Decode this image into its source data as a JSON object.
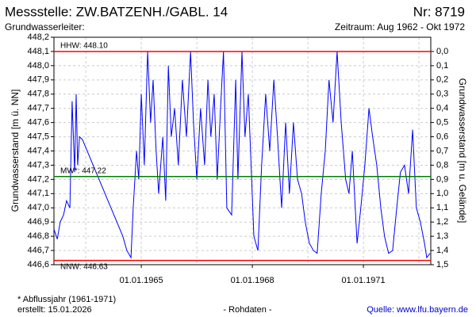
{
  "chart_data": {
    "type": "line",
    "title": "Messstelle: ZW.BATZENH./GABL. 14",
    "number": "Nr: 8719",
    "subtitle_left": "Grundwasserleiter:",
    "subtitle_right": "Zeitraum: Aug 1962 - Okt 1972",
    "ylabel": "Grundwasserstand [m ü. NN]",
    "y2label": "Grundwasserstand [m u. Gelände]",
    "footnote": "* Abflussjahr (1961-1971)",
    "created": "erstellt:  15.01.2026",
    "note": "- Rohdaten -",
    "source": "Quelle: www.lfu.bayern.de",
    "color": "#0000ff",
    "grid": true,
    "x": [
      1962.64,
      1962.73,
      1962.81,
      1962.9,
      1962.98,
      1963.07,
      1963.13,
      1963.2,
      1963.24,
      1963.28,
      1963.33,
      1963.41,
      1964.5,
      1964.61,
      1964.72,
      1964.78,
      1964.87,
      1964.93,
      1965.0,
      1965.08,
      1965.17,
      1965.25,
      1965.32,
      1965.4,
      1965.47,
      1965.58,
      1965.66,
      1965.73,
      1965.81,
      1965.9,
      1966.0,
      1966.11,
      1966.22,
      1966.33,
      1966.41,
      1966.5,
      1966.6,
      1966.71,
      1966.8,
      1966.88,
      1966.97,
      1967.05,
      1967.14,
      1967.22,
      1967.31,
      1967.44,
      1967.55,
      1967.61,
      1967.72,
      1967.8,
      1967.89,
      1968.04,
      1968.15,
      1968.25,
      1968.36,
      1968.47,
      1968.58,
      1968.68,
      1968.79,
      1968.9,
      1969.0,
      1969.11,
      1969.22,
      1969.33,
      1969.43,
      1969.54,
      1969.65,
      1969.75,
      1969.86,
      1969.97,
      1970.07,
      1970.18,
      1970.29,
      1970.4,
      1970.52,
      1970.61,
      1970.7,
      1970.83,
      1970.93,
      1971.04,
      1971.15,
      1971.25,
      1971.36,
      1971.47,
      1971.57,
      1971.68,
      1971.79,
      1971.9,
      1972.0,
      1972.11,
      1972.22,
      1972.33,
      1972.43,
      1972.54,
      1972.65,
      1972.71,
      1972.8
    ],
    "values": [
      446.85,
      446.78,
      446.9,
      446.95,
      447.05,
      447.0,
      447.75,
      447.25,
      447.8,
      447.3,
      447.5,
      447.48,
      446.8,
      446.7,
      446.65,
      447.0,
      447.4,
      447.2,
      447.8,
      447.3,
      448.1,
      447.6,
      447.9,
      447.4,
      447.1,
      447.5,
      447.05,
      448.0,
      447.5,
      447.7,
      447.3,
      447.9,
      447.5,
      448.1,
      447.6,
      447.2,
      447.7,
      447.3,
      447.9,
      447.5,
      447.8,
      447.2,
      447.7,
      448.1,
      447.0,
      446.95,
      447.9,
      447.2,
      448.1,
      447.5,
      447.8,
      446.8,
      446.7,
      447.3,
      447.8,
      447.4,
      447.9,
      447.5,
      447.0,
      447.6,
      447.1,
      447.6,
      447.2,
      447.1,
      446.9,
      446.75,
      446.7,
      446.68,
      447.1,
      447.4,
      447.9,
      447.6,
      448.1,
      447.6,
      447.2,
      447.1,
      447.4,
      446.75,
      447.0,
      447.3,
      447.7,
      447.5,
      447.3,
      447.0,
      446.8,
      446.68,
      446.7,
      447.0,
      447.25,
      447.3,
      447.1,
      447.55,
      447.0,
      446.9,
      446.75,
      446.65,
      446.68
    ],
    "xlim": [
      1962.64,
      1972.82
    ],
    "xticks": [
      {
        "value": 1965,
        "label": "01.01.1965"
      },
      {
        "value": 1968,
        "label": "01.01.1968"
      },
      {
        "value": 1971,
        "label": "01.01.1971"
      }
    ],
    "xminor": [
      1963.5,
      1966.5,
      1969.5,
      1972.5
    ],
    "ylim": [
      446.6,
      448.2
    ],
    "yticks": [
      {
        "value": 446.6,
        "label": "446,6"
      },
      {
        "value": 446.7,
        "label": "446,7"
      },
      {
        "value": 446.8,
        "label": "446,8"
      },
      {
        "value": 446.9,
        "label": "446,9"
      },
      {
        "value": 447.0,
        "label": "447,0"
      },
      {
        "value": 447.1,
        "label": "447,1"
      },
      {
        "value": 447.2,
        "label": "447,2"
      },
      {
        "value": 447.3,
        "label": "447,3"
      },
      {
        "value": 447.4,
        "label": "447,4"
      },
      {
        "value": 447.5,
        "label": "447,5"
      },
      {
        "value": 447.6,
        "label": "447,6"
      },
      {
        "value": 447.7,
        "label": "447,7"
      },
      {
        "value": 447.8,
        "label": "447,8"
      },
      {
        "value": 447.9,
        "label": "447,9"
      },
      {
        "value": 448.0,
        "label": "448,0"
      },
      {
        "value": 448.1,
        "label": "448,1"
      },
      {
        "value": 448.2,
        "label": "448,2"
      }
    ],
    "y2lim": [
      -0.1,
      1.5
    ],
    "y2_inverted": true,
    "y2ticks": [
      {
        "value": 0.0,
        "label": "0,0"
      },
      {
        "value": 0.1,
        "label": "0,1"
      },
      {
        "value": 0.2,
        "label": "0,2"
      },
      {
        "value": 0.3,
        "label": "0,3"
      },
      {
        "value": 0.4,
        "label": "0,4"
      },
      {
        "value": 0.5,
        "label": "0,5"
      },
      {
        "value": 0.6,
        "label": "0,6"
      },
      {
        "value": 0.7,
        "label": "0,7"
      },
      {
        "value": 0.8,
        "label": "0,8"
      },
      {
        "value": 0.9,
        "label": "0,9"
      },
      {
        "value": 1.0,
        "label": "1,0"
      },
      {
        "value": 1.1,
        "label": "1,1"
      },
      {
        "value": 1.2,
        "label": "1,2"
      },
      {
        "value": 1.3,
        "label": "1,3"
      },
      {
        "value": 1.4,
        "label": "1,4"
      },
      {
        "value": 1.5,
        "label": "1,5"
      }
    ],
    "reference_lines": [
      {
        "label": "HHW: 448.10",
        "value": 448.1,
        "color": "#ff0000"
      },
      {
        "label": "MW*: 447.22",
        "value": 447.22,
        "color": "#008000"
      },
      {
        "label": "NNW: 446.63",
        "value": 446.63,
        "color": "#ff0000"
      }
    ]
  }
}
